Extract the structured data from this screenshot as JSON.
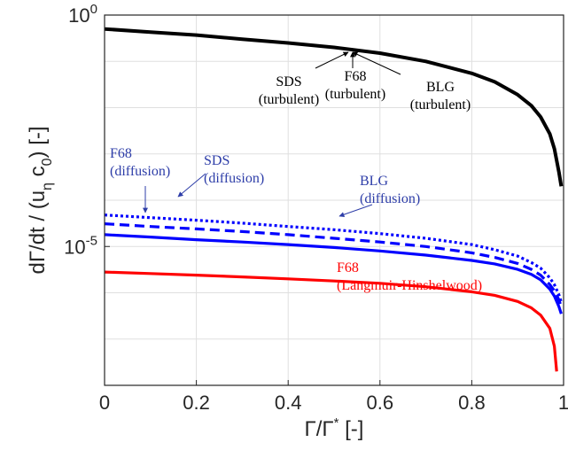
{
  "chart_data": {
    "type": "line",
    "xlabel": "Γ/Γ* [-]",
    "ylabel": "dΓ/dt / (u_η c_0) [-]",
    "x_scale": "linear",
    "y_scale": "log",
    "xlim": [
      0,
      1
    ],
    "ylim": [
      1e-08,
      1
    ],
    "x_ticks": [
      0,
      0.2,
      0.4,
      0.6,
      0.8,
      1
    ],
    "x_tick_labels": [
      "0",
      "0.2",
      "0.4",
      "0.6",
      "0.8",
      "1"
    ],
    "y_ticks": [
      1e-05,
      1
    ],
    "grid": true,
    "series": [
      {
        "color": "#000000",
        "style": "solid",
        "x": [
          0,
          0.1,
          0.2,
          0.3,
          0.4,
          0.5,
          0.6,
          0.7,
          0.8,
          0.85,
          0.9,
          0.93,
          0.95,
          0.97,
          0.98,
          0.99,
          0.995
        ],
        "y": [
          0.5,
          0.43,
          0.37,
          0.3,
          0.25,
          0.2,
          0.15,
          0.1,
          0.055,
          0.036,
          0.019,
          0.011,
          0.0063,
          0.0027,
          0.0013,
          0.0004,
          0.0002
        ]
      },
      {
        "color": "#0000ff",
        "style": "dotted",
        "x": [
          0,
          0.1,
          0.2,
          0.3,
          0.4,
          0.5,
          0.6,
          0.7,
          0.8,
          0.85,
          0.9,
          0.93,
          0.95,
          0.97,
          0.98,
          0.99,
          0.995
        ],
        "y": [
          4.8e-05,
          4.2e-05,
          3.7e-05,
          3.2e-05,
          2.7e-05,
          2.3e-05,
          1.9e-05,
          1.5e-05,
          1.1e-05,
          8.5e-06,
          6.2e-06,
          4.5e-06,
          3.4e-06,
          2.1e-06,
          1.5e-06,
          9e-07,
          6.3e-07
        ]
      },
      {
        "color": "#0000ff",
        "style": "dashed",
        "x": [
          0,
          0.1,
          0.2,
          0.3,
          0.4,
          0.5,
          0.6,
          0.7,
          0.8,
          0.85,
          0.9,
          0.93,
          0.95,
          0.97,
          0.98,
          0.99,
          0.995
        ],
        "y": [
          3.1e-05,
          2.7e-05,
          2.4e-05,
          2.1e-05,
          1.8e-05,
          1.5e-05,
          1.25e-05,
          1e-05,
          7.3e-06,
          5.8e-06,
          4.3e-06,
          3.2e-06,
          2.4e-06,
          1.5e-06,
          1.1e-06,
          7e-07,
          5e-07
        ]
      },
      {
        "color": "#0000ff",
        "style": "solid",
        "x": [
          0,
          0.1,
          0.2,
          0.3,
          0.4,
          0.5,
          0.6,
          0.7,
          0.8,
          0.85,
          0.9,
          0.93,
          0.95,
          0.97,
          0.98,
          0.99,
          0.995
        ],
        "y": [
          1.8e-05,
          1.6e-05,
          1.4e-05,
          1.25e-05,
          1.1e-05,
          9.5e-06,
          8e-06,
          6.5e-06,
          5e-06,
          4.2e-06,
          3.2e-06,
          2.5e-06,
          1.9e-06,
          1.2e-06,
          8.5e-07,
          5e-07,
          3.5e-07
        ]
      },
      {
        "color": "#ff0000",
        "style": "solid",
        "x": [
          0,
          0.1,
          0.2,
          0.3,
          0.4,
          0.5,
          0.6,
          0.7,
          0.8,
          0.85,
          0.9,
          0.93,
          0.95,
          0.97,
          0.98,
          0.985
        ],
        "y": [
          2.8e-06,
          2.6e-06,
          2.4e-06,
          2.2e-06,
          2e-06,
          1.8e-06,
          1.6e-06,
          1.35e-06,
          1.05e-06,
          8.8e-07,
          6.5e-07,
          4.7e-07,
          3.3e-07,
          1.7e-07,
          7e-08,
          2e-08
        ]
      }
    ],
    "annotations": [
      {
        "lines": [
          "SDS",
          "(turbulent)"
        ],
        "color": "#000000"
      },
      {
        "lines": [
          "F68",
          "(turbulent)"
        ],
        "color": "#000000"
      },
      {
        "lines": [
          "BLG",
          "(turbulent)"
        ],
        "color": "#000000"
      },
      {
        "lines": [
          "F68",
          "(diffusion)"
        ],
        "color": "#2d3da8"
      },
      {
        "lines": [
          "SDS",
          "(diffusion)"
        ],
        "color": "#2d3da8"
      },
      {
        "lines": [
          "BLG",
          "(diffusion)"
        ],
        "color": "#2d3da8"
      },
      {
        "lines": [
          "F68",
          "(Langmuir-Hinshelwood)"
        ],
        "color": "#ff0000"
      }
    ]
  }
}
